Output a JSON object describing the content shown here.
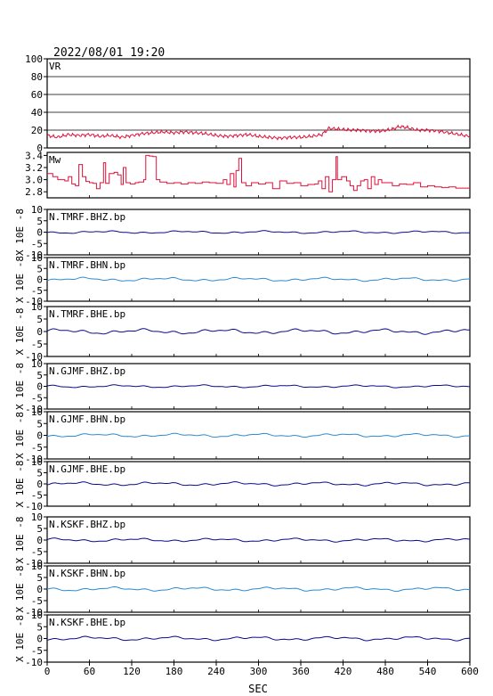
{
  "header": {
    "timestamp": "2022/08/01  19:20"
  },
  "chart_data": {
    "type": "line",
    "xlabel": "SEC",
    "xlim": [
      0,
      600
    ],
    "xticks": [
      0,
      60,
      120,
      180,
      240,
      300,
      360,
      420,
      480,
      540,
      600
    ],
    "colors": {
      "red": "#e0103a",
      "navy": "#0a0a8c",
      "blue": "#2a8ad0",
      "black": "#000000"
    },
    "panels": [
      {
        "label": "VR",
        "ylim": [
          0,
          100
        ],
        "yticks": [
          0,
          20,
          40,
          60,
          80,
          100
        ],
        "hgrid": true,
        "ylabel": "",
        "color": "red",
        "kind": "vr"
      },
      {
        "label": "Mw",
        "ylim": [
          2.7,
          3.45
        ],
        "yticks": [
          2.8,
          3.0,
          3.2,
          3.4
        ],
        "ytick_labels": [
          "2.8",
          "3.0",
          "3.2",
          "3.4"
        ],
        "hgrid": false,
        "ylabel": "",
        "color": "red",
        "kind": "mw"
      },
      {
        "label": "N.TMRF.BHZ.bp",
        "ylim": [
          -10,
          10
        ],
        "yticks": [
          -10,
          -5,
          0,
          5,
          10
        ],
        "ylabel": "X 10E -8",
        "color": "navy",
        "kind": "wave",
        "amp": 0.35
      },
      {
        "label": "N.TMRF.BHN.bp",
        "ylim": [
          -10,
          10
        ],
        "yticks": [
          -10,
          -5,
          0,
          5,
          10
        ],
        "ylabel": "X 10E -8",
        "color": "blue",
        "kind": "wave",
        "amp": 0.5
      },
      {
        "label": "N.TMRF.BHE.bp",
        "ylim": [
          -10,
          10
        ],
        "yticks": [
          -10,
          -5,
          0,
          5,
          10
        ],
        "ylabel": "X 10E -8",
        "color": "navy",
        "kind": "wave",
        "amp": 0.6
      },
      {
        "label": "N.GJMF.BHZ.bp",
        "ylim": [
          -10,
          10
        ],
        "yticks": [
          -10,
          -5,
          0,
          5,
          10
        ],
        "ylabel": "X 10E -8",
        "color": "navy",
        "kind": "wave",
        "amp": 0.35
      },
      {
        "label": "N.GJMF.BHN.bp",
        "ylim": [
          -10,
          10
        ],
        "yticks": [
          -10,
          -5,
          0,
          5,
          10
        ],
        "ylabel": "X 10E -8",
        "color": "blue",
        "kind": "wave",
        "amp": 0.45
      },
      {
        "label": "N.GJMF.BHE.bp",
        "ylim": [
          -10,
          10
        ],
        "yticks": [
          -10,
          -5,
          0,
          5,
          10
        ],
        "ylabel": "X 10E -8",
        "color": "navy",
        "kind": "wave",
        "amp": 0.5
      },
      {
        "label": "N.KSKF.BHZ.bp",
        "ylim": [
          -10,
          10
        ],
        "yticks": [
          -10,
          -5,
          0,
          5,
          10
        ],
        "ylabel": "X 10E -8",
        "color": "navy",
        "kind": "wave",
        "amp": 0.45
      },
      {
        "label": "N.KSKF.BHN.bp",
        "ylim": [
          -10,
          10
        ],
        "yticks": [
          -10,
          -5,
          0,
          5,
          10
        ],
        "ylabel": "X 10E -8",
        "color": "blue",
        "kind": "wave",
        "amp": 0.5
      },
      {
        "label": "N.KSKF.BHE.bp",
        "ylim": [
          -10,
          10
        ],
        "yticks": [
          -10,
          -5,
          0,
          5,
          10
        ],
        "ylabel": "X 10E -8",
        "color": "navy",
        "kind": "wave",
        "amp": 0.5
      }
    ],
    "series": {
      "vr": [
        [
          0,
          14
        ],
        [
          15,
          12
        ],
        [
          30,
          15
        ],
        [
          45,
          14
        ],
        [
          60,
          15
        ],
        [
          75,
          13
        ],
        [
          90,
          14
        ],
        [
          105,
          12
        ],
        [
          120,
          14
        ],
        [
          135,
          16
        ],
        [
          150,
          17
        ],
        [
          165,
          18
        ],
        [
          180,
          17
        ],
        [
          195,
          18
        ],
        [
          210,
          17
        ],
        [
          225,
          16
        ],
        [
          240,
          14
        ],
        [
          255,
          13
        ],
        [
          270,
          14
        ],
        [
          285,
          15
        ],
        [
          300,
          13
        ],
        [
          315,
          12
        ],
        [
          330,
          11
        ],
        [
          345,
          12
        ],
        [
          360,
          12
        ],
        [
          375,
          13
        ],
        [
          390,
          15
        ],
        [
          400,
          22
        ],
        [
          415,
          21
        ],
        [
          430,
          20
        ],
        [
          445,
          20
        ],
        [
          460,
          19
        ],
        [
          475,
          19
        ],
        [
          490,
          21
        ],
        [
          500,
          24
        ],
        [
          510,
          23
        ],
        [
          525,
          20
        ],
        [
          540,
          20
        ],
        [
          555,
          19
        ],
        [
          570,
          17
        ],
        [
          585,
          15
        ],
        [
          600,
          13
        ]
      ],
      "mw": [
        [
          0,
          3.1
        ],
        [
          8,
          3.05
        ],
        [
          15,
          3.0
        ],
        [
          25,
          2.98
        ],
        [
          30,
          3.05
        ],
        [
          35,
          2.93
        ],
        [
          40,
          2.9
        ],
        [
          45,
          3.25
        ],
        [
          50,
          3.05
        ],
        [
          55,
          2.97
        ],
        [
          60,
          2.95
        ],
        [
          65,
          2.94
        ],
        [
          70,
          2.85
        ],
        [
          75,
          2.95
        ],
        [
          80,
          3.28
        ],
        [
          83,
          2.94
        ],
        [
          88,
          3.1
        ],
        [
          95,
          3.12
        ],
        [
          100,
          3.08
        ],
        [
          105,
          2.92
        ],
        [
          108,
          3.2
        ],
        [
          112,
          2.95
        ],
        [
          118,
          2.93
        ],
        [
          125,
          2.95
        ],
        [
          130,
          2.96
        ],
        [
          137,
          3.0
        ],
        [
          140,
          3.4
        ],
        [
          145,
          3.39
        ],
        [
          150,
          3.38
        ],
        [
          155,
          3.0
        ],
        [
          160,
          2.96
        ],
        [
          170,
          2.94
        ],
        [
          180,
          2.95
        ],
        [
          190,
          2.93
        ],
        [
          200,
          2.95
        ],
        [
          210,
          2.94
        ],
        [
          220,
          2.96
        ],
        [
          230,
          2.95
        ],
        [
          240,
          2.94
        ],
        [
          250,
          3.0
        ],
        [
          255,
          2.92
        ],
        [
          260,
          3.1
        ],
        [
          265,
          2.88
        ],
        [
          268,
          3.15
        ],
        [
          272,
          3.35
        ],
        [
          276,
          2.95
        ],
        [
          282,
          2.9
        ],
        [
          290,
          2.95
        ],
        [
          300,
          2.93
        ],
        [
          310,
          2.95
        ],
        [
          320,
          2.85
        ],
        [
          330,
          2.98
        ],
        [
          340,
          2.94
        ],
        [
          350,
          2.95
        ],
        [
          360,
          2.9
        ],
        [
          370,
          2.92
        ],
        [
          380,
          2.93
        ],
        [
          385,
          2.98
        ],
        [
          390,
          2.85
        ],
        [
          395,
          3.05
        ],
        [
          400,
          2.8
        ],
        [
          405,
          3.0
        ],
        [
          410,
          3.38
        ],
        [
          412,
          3.0
        ],
        [
          418,
          3.05
        ],
        [
          425,
          2.98
        ],
        [
          430,
          2.9
        ],
        [
          435,
          2.82
        ],
        [
          440,
          2.9
        ],
        [
          445,
          2.98
        ],
        [
          450,
          3.0
        ],
        [
          455,
          2.85
        ],
        [
          460,
          3.05
        ],
        [
          465,
          2.92
        ],
        [
          470,
          3.0
        ],
        [
          475,
          2.95
        ],
        [
          480,
          2.95
        ],
        [
          490,
          2.9
        ],
        [
          500,
          2.93
        ],
        [
          510,
          2.92
        ],
        [
          520,
          2.95
        ],
        [
          530,
          2.88
        ],
        [
          540,
          2.9
        ],
        [
          550,
          2.88
        ],
        [
          560,
          2.87
        ],
        [
          570,
          2.88
        ],
        [
          580,
          2.86
        ],
        [
          590,
          2.86
        ],
        [
          600,
          2.86
        ]
      ]
    }
  }
}
